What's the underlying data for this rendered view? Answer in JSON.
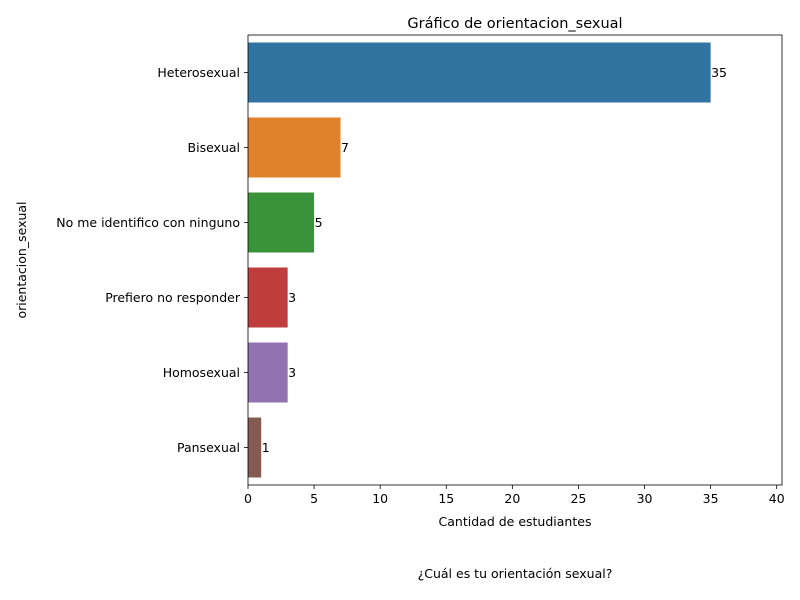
{
  "chart_data": {
    "type": "bar",
    "orientation": "horizontal",
    "title": "Gráfico de orientacion_sexual",
    "xlabel": "Cantidad de estudiantes",
    "ylabel": "orientacion_sexual",
    "xlim": [
      0,
      40.4
    ],
    "xticks": [
      0,
      5,
      10,
      15,
      20,
      25,
      30,
      35,
      40
    ],
    "categories": [
      "Heterosexual",
      "Bisexual",
      "No me identifico con ninguno",
      "Prefiero no responder",
      "Homosexual",
      "Pansexual"
    ],
    "values": [
      35,
      7,
      5,
      3,
      3,
      1
    ],
    "colors": [
      "#3274a1",
      "#e1812c",
      "#3a923a",
      "#c03d3e",
      "#9372b2",
      "#845b53"
    ],
    "grid": false,
    "legend": "none"
  },
  "caption": "¿Cuál es tu orientación sexual?"
}
